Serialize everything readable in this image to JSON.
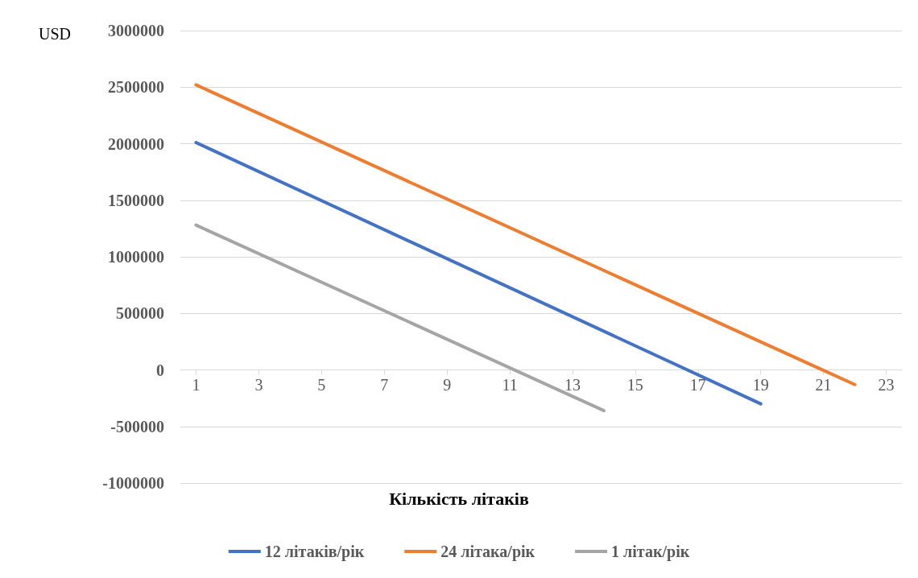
{
  "chart_data": {
    "type": "line",
    "xlabel": "Кількість літаків",
    "ylabel": "USD",
    "xlim": [
      0.5,
      23.5
    ],
    "xticks": [
      1,
      3,
      5,
      7,
      9,
      11,
      13,
      15,
      17,
      19,
      21,
      23
    ],
    "ylim": [
      -1000000,
      3000000
    ],
    "yticks": [
      -1000000,
      -500000,
      0,
      500000,
      1000000,
      1500000,
      2000000,
      2500000,
      3000000
    ],
    "grid": "y",
    "legend": "bottom",
    "marker": "none",
    "line_style": "solid",
    "series": [
      {
        "name": "12 літаків/рік",
        "color": "#4472c4",
        "x": [
          1,
          19
        ],
        "values": [
          2010000,
          -300000
        ]
      },
      {
        "name": "24 літака/рік",
        "color": "#ed7d31",
        "x": [
          1,
          22
        ],
        "values": [
          2520000,
          -130000
        ]
      },
      {
        "name": "1 літак/рік",
        "color": "#a5a5a5",
        "x": [
          1,
          14
        ],
        "values": [
          1280000,
          -360000
        ]
      }
    ]
  }
}
